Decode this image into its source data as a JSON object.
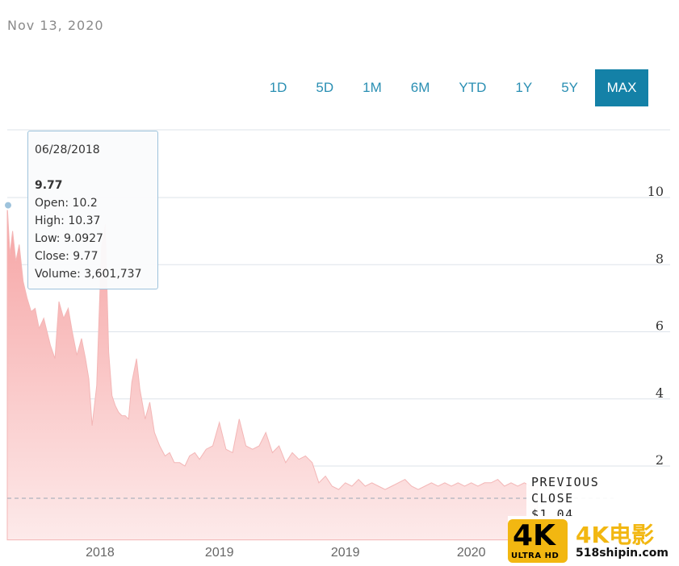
{
  "header": {
    "date": "Nov 13, 2020"
  },
  "range_buttons": [
    {
      "label": "1D",
      "active": false
    },
    {
      "label": "5D",
      "active": false
    },
    {
      "label": "1M",
      "active": false
    },
    {
      "label": "6M",
      "active": false
    },
    {
      "label": "YTD",
      "active": false
    },
    {
      "label": "1Y",
      "active": false
    },
    {
      "label": "5Y",
      "active": false
    },
    {
      "label": "MAX",
      "active": true
    }
  ],
  "tooltip": {
    "date": "06/28/2018",
    "value": "9.77",
    "open": "Open: 10.2",
    "high": "High: 10.37",
    "low": "Low: 9.0927",
    "close": "Close: 9.77",
    "volume": "Volume: 3,601,737"
  },
  "previous_close": {
    "line1": "PREVIOUS",
    "line2": "CLOSE",
    "value": "$1.04"
  },
  "watermark": {
    "badge_main": "4K",
    "badge_sub": "ULTRA HD",
    "title": "4K电影",
    "site": "518shipin.com"
  },
  "colors": {
    "accent": "#1481a7",
    "area_fill_top": "#f6a3a3",
    "area_fill_bottom": "#fdeaea",
    "gridline": "#dde3ea",
    "reference_line": "#9aa6b2"
  },
  "chart_data": {
    "type": "area",
    "y_ticks": [
      2,
      4,
      6,
      8,
      10
    ],
    "ylim": [
      -0.2,
      12
    ],
    "x_tick_labels": [
      "2018",
      "2019",
      "2019",
      "2020"
    ],
    "x_tick_positions": [
      0.14,
      0.32,
      0.51,
      0.7
    ],
    "reference_value": 1.04,
    "marker_value": 9.77,
    "series": [
      {
        "x": [
          0,
          0.004,
          0.008,
          0.013,
          0.018,
          0.024,
          0.03,
          0.036,
          0.042,
          0.048,
          0.055,
          0.06,
          0.065,
          0.072,
          0.078,
          0.085,
          0.092,
          0.098,
          0.105,
          0.112,
          0.118,
          0.123,
          0.128,
          0.135,
          0.142,
          0.148,
          0.153,
          0.158,
          0.163,
          0.168,
          0.173,
          0.178,
          0.183,
          0.188,
          0.195,
          0.2,
          0.208,
          0.215,
          0.222,
          0.23,
          0.238,
          0.245,
          0.252,
          0.26,
          0.268,
          0.275,
          0.283,
          0.29,
          0.3,
          0.31,
          0.32,
          0.33,
          0.34,
          0.35,
          0.36,
          0.37,
          0.38,
          0.39,
          0.4,
          0.41,
          0.42,
          0.43,
          0.44,
          0.45,
          0.46,
          0.47,
          0.48,
          0.49,
          0.5,
          0.51,
          0.52,
          0.53,
          0.54,
          0.55,
          0.56,
          0.57,
          0.58,
          0.59,
          0.6,
          0.61,
          0.62,
          0.63,
          0.64,
          0.65,
          0.66,
          0.67,
          0.68,
          0.69,
          0.7,
          0.71,
          0.72,
          0.73,
          0.74,
          0.75,
          0.76,
          0.77,
          0.78,
          0.79,
          0.8
        ],
        "values": [
          9.77,
          8.3,
          9.0,
          8.1,
          8.6,
          7.5,
          7.0,
          6.6,
          6.7,
          6.1,
          6.4,
          6.0,
          5.6,
          5.2,
          6.9,
          6.4,
          6.7,
          6.0,
          5.3,
          5.8,
          5.2,
          4.6,
          3.2,
          4.4,
          8.5,
          9.2,
          5.4,
          4.1,
          3.8,
          3.6,
          3.5,
          3.5,
          3.4,
          4.5,
          5.2,
          4.3,
          3.4,
          3.9,
          3.0,
          2.6,
          2.3,
          2.4,
          2.1,
          2.1,
          2.0,
          2.3,
          2.4,
          2.2,
          2.5,
          2.6,
          3.3,
          2.5,
          2.4,
          3.4,
          2.6,
          2.5,
          2.6,
          3.0,
          2.4,
          2.6,
          2.1,
          2.4,
          2.2,
          2.3,
          2.1,
          1.5,
          1.7,
          1.4,
          1.3,
          1.5,
          1.4,
          1.6,
          1.4,
          1.5,
          1.4,
          1.3,
          1.4,
          1.5,
          1.6,
          1.4,
          1.3,
          1.4,
          1.5,
          1.4,
          1.5,
          1.4,
          1.5,
          1.4,
          1.5,
          1.4,
          1.5,
          1.5,
          1.6,
          1.4,
          1.5,
          1.4,
          1.5,
          1.4,
          1.45
        ]
      }
    ]
  }
}
